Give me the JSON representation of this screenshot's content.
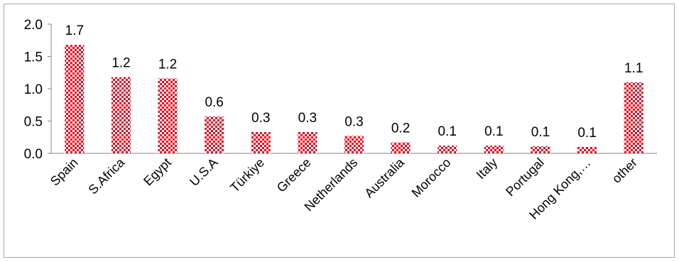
{
  "chart_data": {
    "type": "bar",
    "categories": [
      "Spain",
      "S.Africa",
      "Egypt",
      "U.S.A",
      "Türkiye",
      "Greece",
      "Netherlands",
      "Australia",
      "Morocco",
      "Italy",
      "Portugal",
      "Hong Kong,…",
      "other"
    ],
    "values": [
      1.68,
      1.18,
      1.16,
      0.57,
      0.33,
      0.33,
      0.27,
      0.17,
      0.12,
      0.12,
      0.11,
      0.1,
      1.1
    ],
    "data_labels": [
      "1.7",
      "1.2",
      "1.2",
      "0.6",
      "0.3",
      "0.3",
      "0.3",
      "0.2",
      "0.1",
      "0.1",
      "0.1",
      "0.1",
      "1.1"
    ],
    "y_ticks": [
      "0.0",
      "0.5",
      "1.0",
      "1.5",
      "2.0"
    ],
    "ylim": [
      0,
      2.0
    ],
    "title": "",
    "xlabel": "",
    "ylabel": "",
    "grid": false,
    "legend": "none",
    "bar_color": "#e8001c",
    "bar_pattern": "checkerboard"
  }
}
